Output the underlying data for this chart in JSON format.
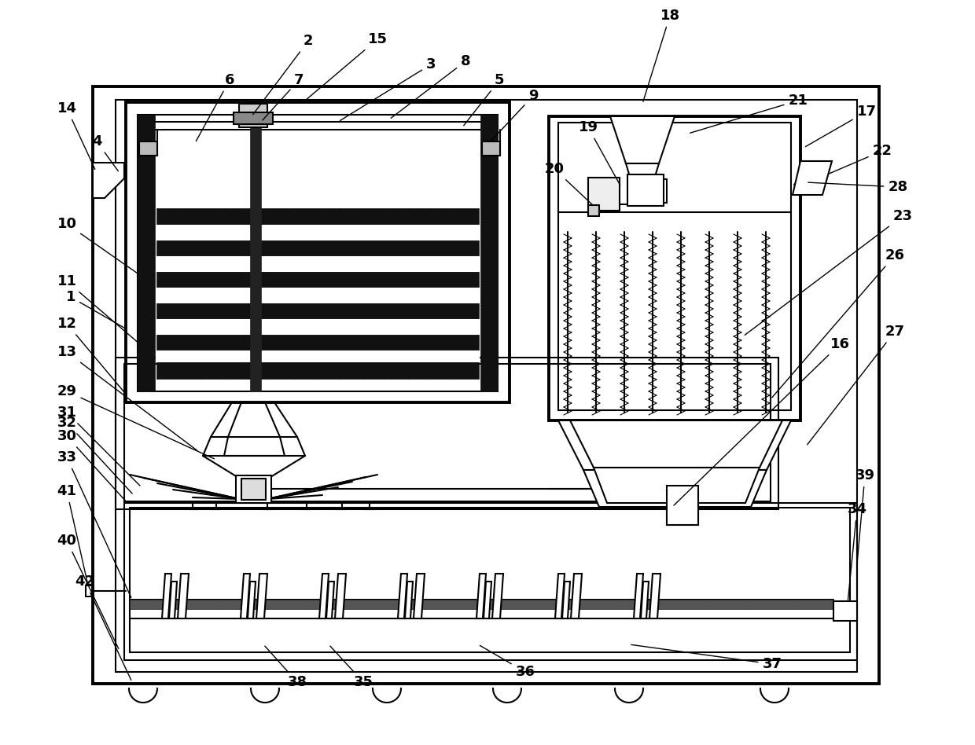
{
  "bg": "#ffffff",
  "lc": "#000000",
  "lw": 1.5,
  "tlw": 2.8
}
